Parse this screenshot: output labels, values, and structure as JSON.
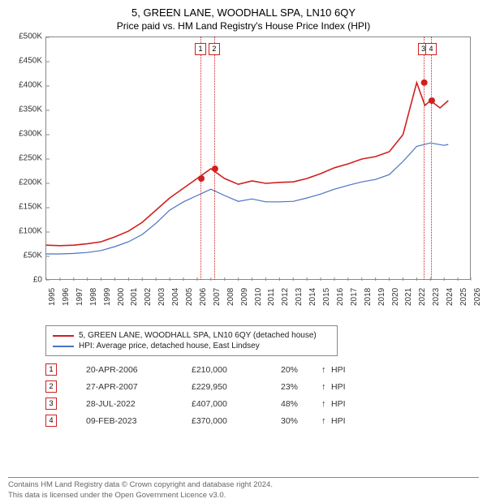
{
  "title": "5, GREEN LANE, WOODHALL SPA, LN10 6QY",
  "subtitle": "Price paid vs. HM Land Registry's House Price Index (HPI)",
  "chart": {
    "type": "line",
    "background_color": "#ffffff",
    "border_color": "#888888",
    "y": {
      "min": 0,
      "max": 500000,
      "step": 50000,
      "labels": [
        "£0",
        "£50K",
        "£100K",
        "£150K",
        "£200K",
        "£250K",
        "£300K",
        "£350K",
        "£400K",
        "£450K",
        "£500K"
      ],
      "label_fontsize": 10,
      "label_color": "#333333"
    },
    "x": {
      "min": 1995,
      "max": 2026,
      "step": 1,
      "labels": [
        "1995",
        "1996",
        "1997",
        "1998",
        "1999",
        "2000",
        "2001",
        "2002",
        "2003",
        "2004",
        "2005",
        "2006",
        "2007",
        "2008",
        "2009",
        "2010",
        "2011",
        "2012",
        "2013",
        "2014",
        "2015",
        "2016",
        "2017",
        "2018",
        "2019",
        "2020",
        "2021",
        "2022",
        "2023",
        "2024",
        "2025",
        "2026"
      ],
      "label_fontsize": 10,
      "label_color": "#333333"
    },
    "series": [
      {
        "name": "5, GREEN LANE, WOODHALL SPA, LN10 6QY (detached house)",
        "color": "#d02020",
        "line_width": 1.6,
        "data": [
          [
            1995,
            73000
          ],
          [
            1996,
            72000
          ],
          [
            1997,
            73000
          ],
          [
            1998,
            76000
          ],
          [
            1999,
            80000
          ],
          [
            2000,
            90000
          ],
          [
            2001,
            102000
          ],
          [
            2002,
            120000
          ],
          [
            2003,
            145000
          ],
          [
            2004,
            170000
          ],
          [
            2005,
            190000
          ],
          [
            2006,
            210000
          ],
          [
            2007,
            229950
          ],
          [
            2008,
            210000
          ],
          [
            2009,
            198000
          ],
          [
            2010,
            205000
          ],
          [
            2011,
            200000
          ],
          [
            2012,
            202000
          ],
          [
            2013,
            203000
          ],
          [
            2014,
            210000
          ],
          [
            2015,
            220000
          ],
          [
            2016,
            232000
          ],
          [
            2017,
            240000
          ],
          [
            2018,
            250000
          ],
          [
            2019,
            255000
          ],
          [
            2020,
            265000
          ],
          [
            2021,
            300000
          ],
          [
            2022,
            407000
          ],
          [
            2022.6,
            360000
          ],
          [
            2023,
            370000
          ],
          [
            2023.7,
            355000
          ],
          [
            2024.3,
            370000
          ]
        ]
      },
      {
        "name": "HPI: Average price, detached house, East Lindsey",
        "color": "#4a72c4",
        "line_width": 1.2,
        "data": [
          [
            1995,
            55000
          ],
          [
            1996,
            55000
          ],
          [
            1997,
            56000
          ],
          [
            1998,
            58000
          ],
          [
            1999,
            62000
          ],
          [
            2000,
            70000
          ],
          [
            2001,
            80000
          ],
          [
            2002,
            95000
          ],
          [
            2003,
            118000
          ],
          [
            2004,
            145000
          ],
          [
            2005,
            162000
          ],
          [
            2006,
            175000
          ],
          [
            2007,
            188000
          ],
          [
            2008,
            175000
          ],
          [
            2009,
            163000
          ],
          [
            2010,
            168000
          ],
          [
            2011,
            162000
          ],
          [
            2012,
            162000
          ],
          [
            2013,
            163000
          ],
          [
            2014,
            170000
          ],
          [
            2015,
            178000
          ],
          [
            2016,
            188000
          ],
          [
            2017,
            196000
          ],
          [
            2018,
            203000
          ],
          [
            2019,
            208000
          ],
          [
            2020,
            218000
          ],
          [
            2021,
            245000
          ],
          [
            2022,
            276000
          ],
          [
            2023,
            283000
          ],
          [
            2024,
            278000
          ],
          [
            2024.3,
            280000
          ]
        ]
      }
    ],
    "sale_markers": [
      {
        "n": "1",
        "year": 2006.3,
        "price": 210000
      },
      {
        "n": "2",
        "year": 2007.3,
        "price": 229950
      },
      {
        "n": "3",
        "year": 2022.55,
        "price": 407000
      },
      {
        "n": "4",
        "year": 2023.1,
        "price": 370000
      }
    ],
    "marker_vline_color": "#d02020",
    "marker_box_border": "#d02020",
    "marker_dot_radius": 4
  },
  "legend": {
    "border_color": "#888888",
    "fontsize": 10,
    "items": [
      {
        "color": "#d02020",
        "label": "5, GREEN LANE, WOODHALL SPA, LN10 6QY (detached house)"
      },
      {
        "color": "#4a72c4",
        "label": "HPI: Average price, detached house, East Lindsey"
      }
    ]
  },
  "sales": [
    {
      "n": "1",
      "date": "20-APR-2006",
      "price": "£210,000",
      "pct": "20%",
      "arrow": "↑",
      "hpi": "HPI"
    },
    {
      "n": "2",
      "date": "27-APR-2007",
      "price": "£229,950",
      "pct": "23%",
      "arrow": "↑",
      "hpi": "HPI"
    },
    {
      "n": "3",
      "date": "28-JUL-2022",
      "price": "£407,000",
      "pct": "48%",
      "arrow": "↑",
      "hpi": "HPI"
    },
    {
      "n": "4",
      "date": "09-FEB-2023",
      "price": "£370,000",
      "pct": "30%",
      "arrow": "↑",
      "hpi": "HPI"
    }
  ],
  "footer": {
    "line1": "Contains HM Land Registry data © Crown copyright and database right 2024.",
    "line2": "This data is licensed under the Open Government Licence v3.0."
  }
}
